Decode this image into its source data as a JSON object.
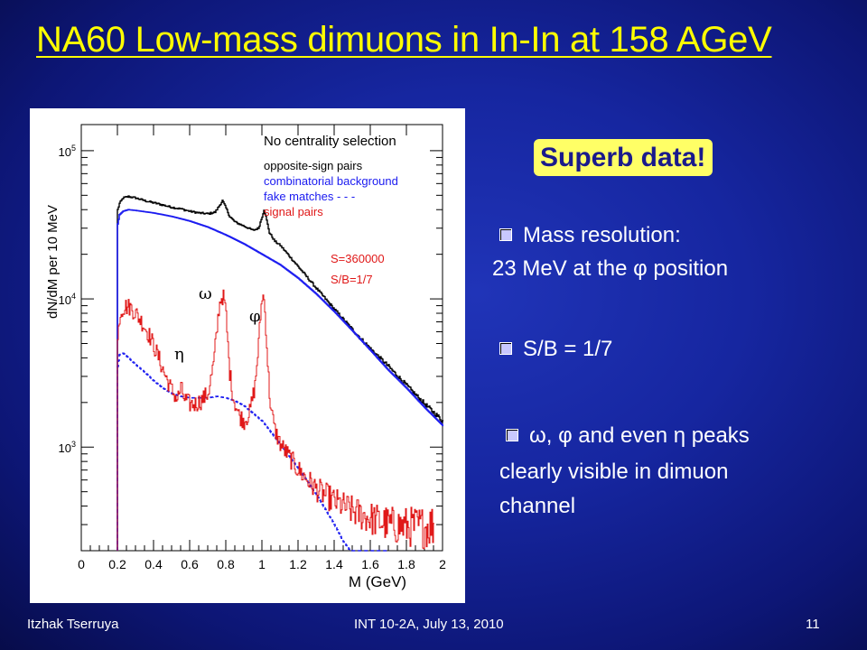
{
  "slide": {
    "title": "NA60 Low-mass dimuons in In-In at 158 AGeV",
    "badge": "Superb data!",
    "bullets": {
      "b1_line1": "Mass resolution:",
      "b1_line2": "23 MeV at the φ position",
      "b2": "S/B = 1/7",
      "b3_line1": "ω, φ and even η peaks",
      "b3_line2": "clearly visible in  dimuon",
      "b3_line3": "channel"
    },
    "footer": {
      "author": "Itzhak Tserruya",
      "event": "INT 10-2A, July 13, 2010",
      "page": "11"
    }
  },
  "chart_data": {
    "type": "line",
    "xlabel": "M (GeV)",
    "ylabel": "dN/dM per 10 MeV",
    "xlim": [
      0,
      2
    ],
    "ylim": [
      200,
      150000
    ],
    "yscale": "log",
    "x_ticks": [
      "0",
      "0.2",
      "0.4",
      "0.6",
      "0.8",
      "1",
      "1.2",
      "1.4",
      "1.6",
      "1.8",
      "2"
    ],
    "y_ticks": [
      "10^3",
      "10^4",
      "10^5"
    ],
    "legend_title": "No centrality selection",
    "legend_position": "top-right",
    "annotations": [
      "S=360000",
      "S/B=1/7",
      "ω",
      "φ",
      "η"
    ],
    "series": [
      {
        "name": "opposite-sign pairs",
        "color": "#000000",
        "dash": "solid",
        "x": [
          0.2,
          0.21,
          0.23,
          0.26,
          0.3,
          0.35,
          0.4,
          0.45,
          0.5,
          0.55,
          0.6,
          0.65,
          0.7,
          0.74,
          0.76,
          0.78,
          0.8,
          0.82,
          0.85,
          0.9,
          0.95,
          0.98,
          1.0,
          1.01,
          1.02,
          1.04,
          1.07,
          1.1,
          1.2,
          1.3,
          1.4,
          1.5,
          1.6,
          1.7,
          1.8,
          1.9,
          2.0
        ],
        "y": [
          40000,
          44000,
          48000,
          49000,
          48000,
          46000,
          44500,
          43000,
          41500,
          40500,
          39000,
          38000,
          37500,
          38500,
          42000,
          46000,
          41000,
          36000,
          33000,
          31000,
          29000,
          30000,
          36000,
          40000,
          36000,
          28000,
          24500,
          23000,
          16500,
          11800,
          8500,
          6200,
          4600,
          3500,
          2600,
          1950,
          1500
        ]
      },
      {
        "name": "combinatorial background",
        "color": "#1a1af0",
        "dash": "solid",
        "x": [
          0.2,
          0.21,
          0.23,
          0.26,
          0.3,
          0.4,
          0.5,
          0.6,
          0.7,
          0.8,
          0.9,
          1.0,
          1.1,
          1.2,
          1.3,
          1.4,
          1.5,
          1.6,
          1.7,
          1.8,
          1.9,
          2.0
        ],
        "y": [
          32000,
          37000,
          39000,
          40000,
          39500,
          38000,
          36000,
          33500,
          30500,
          27000,
          23500,
          20000,
          17000,
          13800,
          10800,
          8200,
          6100,
          4500,
          3300,
          2500,
          1850,
          1400
        ]
      },
      {
        "name": "fake matches",
        "color": "#1a1af0",
        "dash": "dashed",
        "x": [
          0.2,
          0.21,
          0.23,
          0.26,
          0.3,
          0.35,
          0.4,
          0.45,
          0.5,
          0.55,
          0.6,
          0.65,
          0.7,
          0.75,
          0.8,
          0.85,
          0.9,
          1.0,
          1.1,
          1.2,
          1.3,
          1.35,
          1.4,
          1.45,
          1.5,
          1.55,
          1.6,
          1.65,
          1.7
        ],
        "y": [
          3500,
          4200,
          4300,
          4000,
          3600,
          3200,
          2800,
          2500,
          2300,
          2200,
          2150,
          2150,
          2150,
          2200,
          2150,
          2050,
          1900,
          1500,
          1050,
          720,
          480,
          380,
          300,
          230,
          190,
          180,
          185,
          190,
          200
        ]
      },
      {
        "name": "signal pairs",
        "color": "#e01818",
        "dash": "solid",
        "x": [
          0.2,
          0.21,
          0.22,
          0.24,
          0.27,
          0.3,
          0.34,
          0.38,
          0.42,
          0.46,
          0.5,
          0.53,
          0.55,
          0.57,
          0.6,
          0.63,
          0.66,
          0.7,
          0.73,
          0.75,
          0.76,
          0.77,
          0.78,
          0.79,
          0.8,
          0.81,
          0.82,
          0.84,
          0.87,
          0.9,
          0.93,
          0.96,
          0.98,
          0.99,
          1.0,
          1.01,
          1.02,
          1.03,
          1.04,
          1.05,
          1.07,
          1.1,
          1.2,
          1.3,
          1.4,
          1.5,
          1.6,
          1.7,
          1.8,
          1.9,
          1.95
        ],
        "y": [
          5200,
          7600,
          8400,
          8900,
          8800,
          8000,
          6800,
          5500,
          4200,
          3100,
          2400,
          2100,
          2500,
          2100,
          1950,
          1950,
          2050,
          2300,
          3600,
          6300,
          8600,
          10000,
          10400,
          9800,
          7600,
          4800,
          3200,
          2150,
          1650,
          1500,
          1700,
          2600,
          5000,
          7600,
          10600,
          9900,
          6500,
          3700,
          2300,
          1750,
          1300,
          1050,
          700,
          520,
          430,
          370,
          330,
          300,
          290,
          290,
          300
        ]
      }
    ]
  }
}
